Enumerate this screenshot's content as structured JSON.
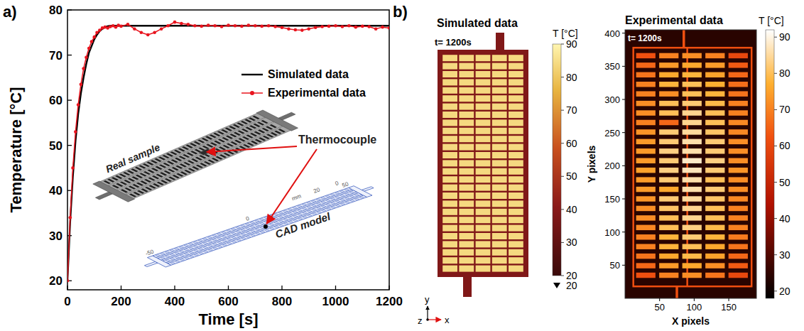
{
  "chart_data": [
    {
      "type": "line",
      "label": "a)",
      "x_label": "Time [s]",
      "y_label": "Temperature [°C]",
      "xlim": [
        0,
        1200
      ],
      "xticks": [
        0,
        200,
        400,
        600,
        800,
        1000,
        1200
      ],
      "ylim": [
        18,
        80
      ],
      "yticks": [
        20,
        30,
        40,
        50,
        60,
        70,
        80
      ],
      "legend": "right",
      "x": [
        0,
        10,
        20,
        30,
        40,
        50,
        60,
        70,
        80,
        90,
        100,
        110,
        120,
        130,
        140,
        150,
        160,
        170,
        180,
        190,
        200,
        225,
        250,
        275,
        300,
        325,
        350,
        375,
        400,
        425,
        450,
        475,
        500,
        525,
        550,
        575,
        600,
        625,
        650,
        675,
        700,
        725,
        750,
        775,
        800,
        825,
        850,
        875,
        900,
        925,
        950,
        975,
        1000,
        1025,
        1050,
        1075,
        1100,
        1125,
        1150,
        1175,
        1200
      ],
      "series": [
        {
          "name": "Simulated data",
          "color": "#000000",
          "line_style": "solid",
          "values": [
            20,
            33,
            43,
            51,
            57,
            61.5,
            65,
            68,
            70.5,
            72,
            73.5,
            74.5,
            75.3,
            75.8,
            76.2,
            76.4,
            76.5,
            76.5,
            76.5,
            76.5,
            76.5,
            76.5,
            76.5,
            76.5,
            76.5,
            76.5,
            76.5,
            76.5,
            76.5,
            76.5,
            76.5,
            76.5,
            76.5,
            76.5,
            76.5,
            76.5,
            76.5,
            76.5,
            76.5,
            76.5,
            76.5,
            76.5,
            76.5,
            76.5,
            76.5,
            76.5,
            76.5,
            76.5,
            76.5,
            76.5,
            76.5,
            76.5,
            76.5,
            76.5,
            76.5,
            76.5,
            76.5,
            76.5,
            76.5,
            76.5,
            76.5
          ]
        },
        {
          "name": "Experimental data",
          "color": "#e8141e",
          "marker": "circle",
          "line_style": "solid",
          "values": [
            20,
            34,
            45,
            53,
            59,
            63.5,
            67,
            69.5,
            71.5,
            73,
            74,
            75,
            75.5,
            76,
            76.2,
            76,
            76.3,
            76.5,
            76.2,
            76.6,
            76.4,
            76.8,
            75.8,
            75,
            74.5,
            75,
            75.8,
            76.5,
            77.3,
            77,
            76.8,
            76.5,
            76.4,
            76.6,
            76.5,
            76.3,
            76.6,
            76.5,
            76.4,
            76.6,
            76.5,
            76.4,
            76.5,
            76.3,
            76.1,
            75.8,
            75.6,
            75.5,
            75.8,
            76.1,
            76.3,
            76.4,
            76.5,
            76.3,
            76.5,
            76.2,
            76.4,
            76.3,
            75.8,
            76.2,
            76
          ]
        }
      ],
      "annotations": [
        "Real sample",
        "Thermocouple",
        "CAD model"
      ],
      "inset_scale_labels": [
        "50",
        "0",
        "-50",
        "20",
        "0",
        "mm"
      ]
    },
    {
      "type": "heatmap",
      "label": "b)",
      "title": "Simulated data",
      "time_label": "t= 1200s",
      "cell_temperature": 84,
      "frame_temperature": 38,
      "colorbar_title": "T [°C]",
      "colorbar_range": [
        20,
        90
      ],
      "colorbar_ticks": [
        20,
        30,
        40,
        50,
        60,
        70,
        80,
        90
      ],
      "colorbar_min": 20,
      "axis_triad": [
        "y",
        "z",
        "x"
      ]
    },
    {
      "type": "heatmap",
      "title": "Experimental data",
      "time_label": "t= 1200s",
      "x_label": "X pixels",
      "y_label": "Y pixels",
      "xlim": [
        0,
        190
      ],
      "xticks": [
        50,
        100,
        150
      ],
      "ylim": [
        0,
        405
      ],
      "yticks": [
        50,
        100,
        150,
        200,
        250,
        300,
        350,
        400
      ],
      "background_temperature": 24,
      "frame_temperature": 62,
      "cells": [
        [
          62,
          70,
          72,
          70,
          60
        ],
        [
          66,
          74,
          76,
          74,
          64
        ],
        [
          68,
          76,
          78,
          75,
          66
        ],
        [
          70,
          78,
          80,
          77,
          67
        ],
        [
          70,
          72,
          80,
          78,
          68
        ],
        [
          72,
          80,
          82,
          79,
          70
        ],
        [
          72,
          80,
          84,
          80,
          70
        ],
        [
          70,
          66,
          84,
          80,
          71
        ],
        [
          73,
          82,
          85,
          81,
          71
        ],
        [
          74,
          82,
          86,
          82,
          72
        ],
        [
          74,
          83,
          86,
          82,
          72
        ],
        [
          74,
          82,
          88,
          83,
          72
        ],
        [
          75,
          83,
          87,
          82,
          73
        ],
        [
          74,
          82,
          86,
          80,
          72
        ],
        [
          74,
          76,
          86,
          82,
          72
        ],
        [
          73,
          82,
          85,
          81,
          71
        ],
        [
          72,
          81,
          84,
          80,
          70
        ],
        [
          72,
          80,
          84,
          80,
          70
        ],
        [
          71,
          80,
          83,
          79,
          70
        ],
        [
          70,
          78,
          82,
          78,
          69
        ],
        [
          70,
          78,
          80,
          76,
          68
        ],
        [
          68,
          76,
          79,
          75,
          66
        ],
        [
          66,
          74,
          76,
          72,
          64
        ],
        [
          62,
          70,
          72,
          68,
          60
        ]
      ],
      "colorbar_title": "T [°C]",
      "colorbar_range": [
        18,
        92
      ],
      "colorbar_ticks": [
        20,
        30,
        40,
        50,
        60,
        70,
        80,
        90
      ]
    }
  ]
}
